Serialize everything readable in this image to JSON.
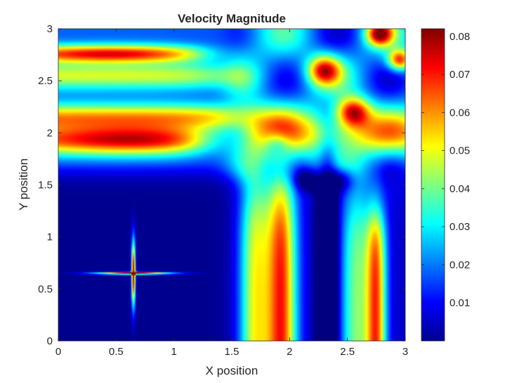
{
  "chart_data": {
    "type": "heatmap",
    "title": "Velocity Magnitude",
    "xlabel": "X position",
    "ylabel": "Y position",
    "xlim": [
      0,
      3
    ],
    "ylim": [
      0,
      3
    ],
    "x_ticks": [
      "0",
      "0.5",
      "1",
      "1.5",
      "2",
      "2.5",
      "3"
    ],
    "y_ticks": [
      "0",
      "0.5",
      "1",
      "1.5",
      "2",
      "2.5",
      "3"
    ],
    "colorbar": {
      "colormap": "jet",
      "range": [
        0,
        0.082
      ],
      "ticks": [
        "0.01",
        "0.02",
        "0.03",
        "0.04",
        "0.05",
        "0.06",
        "0.07",
        "0.08"
      ]
    },
    "features": [
      {
        "type": "vertical_band",
        "x": 1.93,
        "y_max": 1.6,
        "width": 0.18,
        "peak": 0.065
      },
      {
        "type": "vertical_band",
        "x": 2.75,
        "y_max": 1.2,
        "width": 0.12,
        "peak": 0.06
      },
      {
        "type": "horizontal_band",
        "y": 1.93,
        "x_max": 1.2,
        "width": 0.15,
        "peak": 0.065
      },
      {
        "type": "horizontal_band",
        "y": 2.75,
        "x_max": 1.0,
        "width": 0.1,
        "peak": 0.06
      },
      {
        "type": "cross",
        "x": 0.65,
        "y": 0.65,
        "peak": 0.082
      }
    ]
  }
}
